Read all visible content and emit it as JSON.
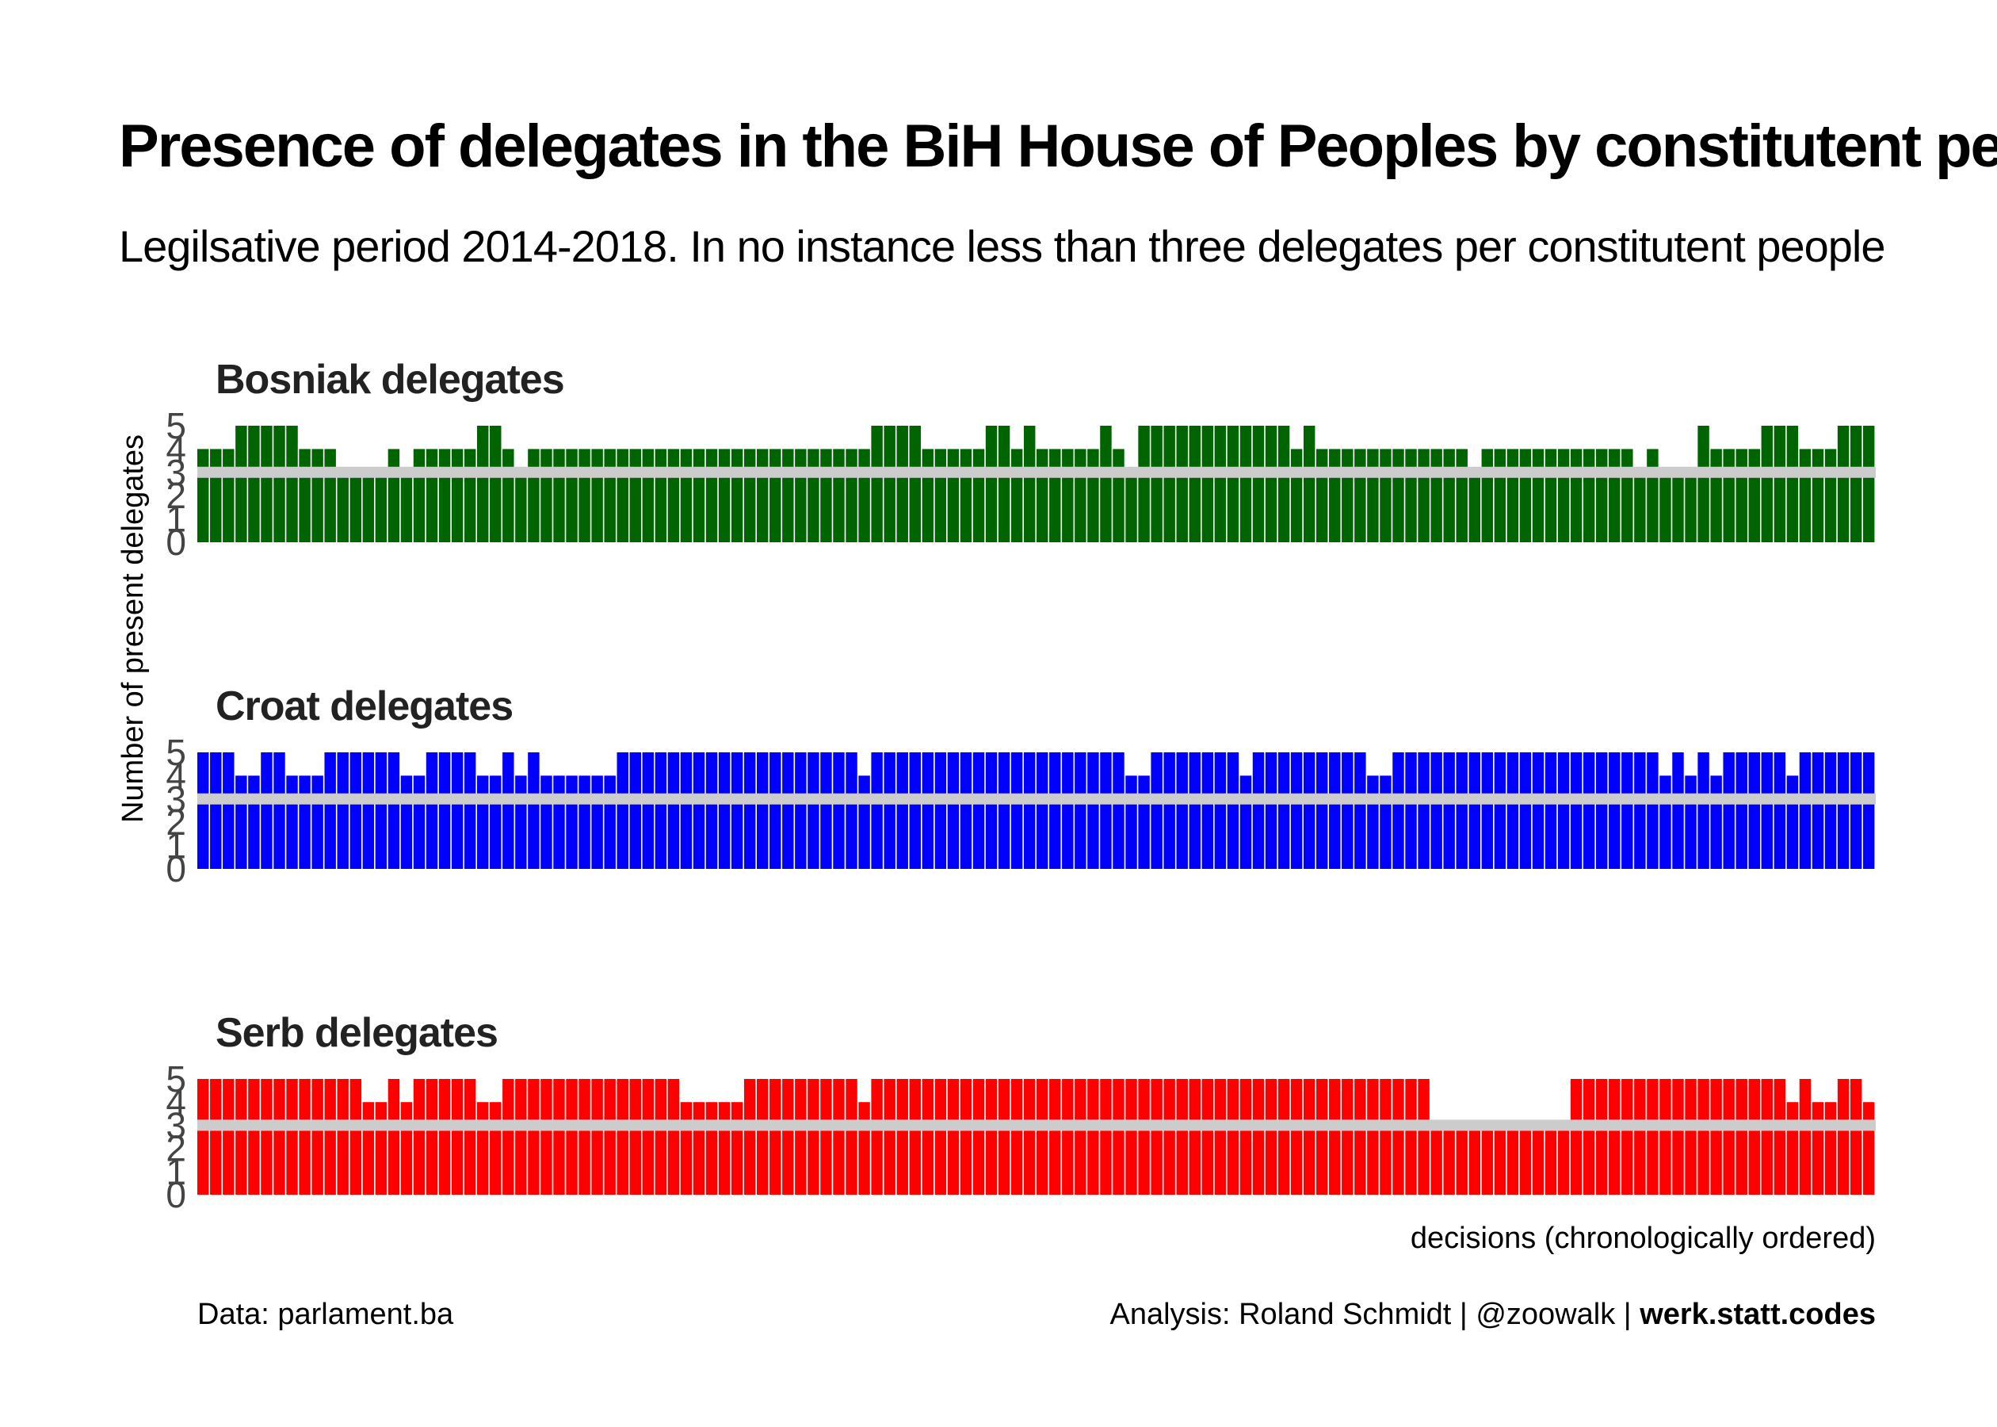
{
  "title": "Presence of delegates in the BiH House of Peoples by constitutent peoples",
  "subtitle": "Legilsative period 2014-2018. In no instance less than three delegates per constitutent people",
  "ylabel": "Number of present delegates",
  "xlabel": "decisions (chronologically ordered)",
  "caption_left": "Data: parlament.ba",
  "caption_right": "Analysis: Roland Schmidt | @zoowalk | ",
  "caption_right_bold": "werk.statt.codes",
  "chart_data": [
    {
      "type": "bar",
      "title": "Bosniak delegates",
      "color": "#006400",
      "ylim": [
        0,
        5
      ],
      "yticks": [
        0,
        1,
        2,
        3,
        4,
        5
      ],
      "reference_line": 3,
      "values": [
        4,
        4,
        4,
        5,
        5,
        5,
        5,
        5,
        4,
        4,
        4,
        3,
        3,
        3,
        3,
        4,
        3,
        4,
        4,
        4,
        4,
        4,
        5,
        5,
        4,
        3,
        4,
        4,
        4,
        4,
        4,
        4,
        4,
        4,
        4,
        4,
        4,
        4,
        4,
        4,
        4,
        4,
        4,
        4,
        4,
        4,
        4,
        4,
        4,
        4,
        4,
        4,
        4,
        5,
        5,
        5,
        5,
        4,
        4,
        4,
        4,
        4,
        5,
        5,
        4,
        5,
        4,
        4,
        4,
        4,
        4,
        5,
        4,
        3,
        5,
        5,
        5,
        5,
        5,
        5,
        5,
        5,
        5,
        5,
        5,
        5,
        4,
        5,
        4,
        4,
        4,
        4,
        4,
        4,
        4,
        4,
        4,
        4,
        4,
        4,
        3,
        4,
        4,
        4,
        4,
        4,
        4,
        4,
        4,
        4,
        4,
        4,
        4,
        3,
        4,
        3,
        3,
        3,
        5,
        4,
        4,
        4,
        4,
        5,
        5,
        5,
        4,
        4,
        4,
        5,
        5,
        5
      ]
    },
    {
      "type": "bar",
      "title": "Croat delegates",
      "color": "#0000ff",
      "ylim": [
        0,
        5
      ],
      "yticks": [
        0,
        1,
        2,
        3,
        4,
        5
      ],
      "reference_line": 3,
      "values": [
        5,
        5,
        5,
        4,
        4,
        5,
        5,
        4,
        4,
        4,
        5,
        5,
        5,
        5,
        5,
        5,
        4,
        4,
        5,
        5,
        5,
        5,
        4,
        4,
        5,
        4,
        5,
        4,
        4,
        4,
        4,
        4,
        4,
        5,
        5,
        5,
        5,
        5,
        5,
        5,
        5,
        5,
        5,
        5,
        5,
        5,
        5,
        5,
        5,
        5,
        5,
        5,
        4,
        5,
        5,
        5,
        5,
        5,
        5,
        5,
        5,
        5,
        5,
        5,
        5,
        5,
        5,
        5,
        5,
        5,
        5,
        5,
        5,
        4,
        4,
        5,
        5,
        5,
        5,
        5,
        5,
        5,
        4,
        5,
        5,
        5,
        5,
        5,
        5,
        5,
        5,
        5,
        4,
        4,
        5,
        5,
        5,
        5,
        5,
        5,
        5,
        5,
        5,
        5,
        5,
        5,
        5,
        5,
        5,
        5,
        5,
        5,
        5,
        5,
        5,
        4,
        5,
        4,
        5,
        4,
        5,
        5,
        5,
        5,
        5,
        4,
        5,
        5,
        5,
        5,
        5,
        5
      ]
    },
    {
      "type": "bar",
      "title": "Serb delegates",
      "color": "#ff0000",
      "ylim": [
        0,
        5
      ],
      "yticks": [
        0,
        1,
        2,
        3,
        4,
        5
      ],
      "reference_line": 3,
      "values": [
        5,
        5,
        5,
        5,
        5,
        5,
        5,
        5,
        5,
        5,
        5,
        5,
        5,
        4,
        4,
        5,
        4,
        5,
        5,
        5,
        5,
        5,
        4,
        4,
        5,
        5,
        5,
        5,
        5,
        5,
        5,
        5,
        5,
        5,
        5,
        5,
        5,
        5,
        4,
        4,
        4,
        4,
        4,
        5,
        5,
        5,
        5,
        5,
        5,
        5,
        5,
        5,
        4,
        5,
        5,
        5,
        5,
        5,
        5,
        5,
        5,
        5,
        5,
        5,
        5,
        5,
        5,
        5,
        5,
        5,
        5,
        5,
        5,
        5,
        5,
        5,
        5,
        5,
        5,
        5,
        5,
        5,
        5,
        5,
        5,
        5,
        5,
        5,
        5,
        5,
        5,
        5,
        5,
        5,
        5,
        5,
        5,
        3,
        3,
        3,
        3,
        3,
        3,
        3,
        3,
        3,
        3,
        3,
        5,
        5,
        5,
        5,
        5,
        5,
        5,
        5,
        5,
        5,
        5,
        5,
        5,
        5,
        5,
        5,
        5,
        4,
        5,
        4,
        4,
        5,
        5,
        4
      ]
    }
  ]
}
